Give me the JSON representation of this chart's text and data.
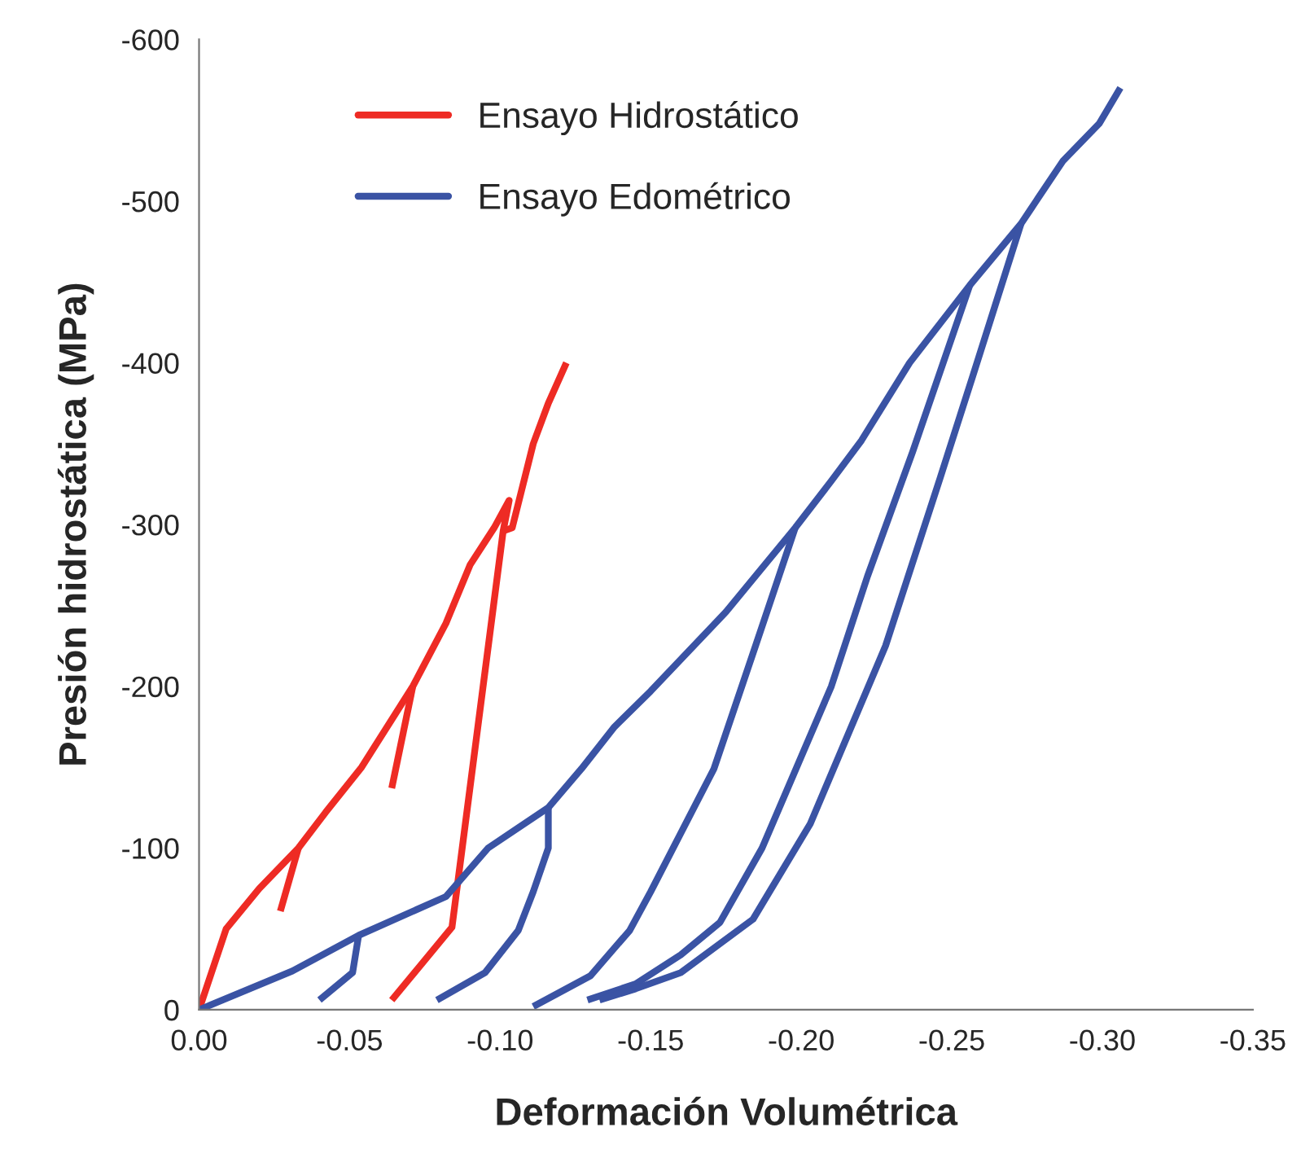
{
  "chart_data": {
    "type": "line",
    "xlabel": "Deformación Volumétrica",
    "ylabel": "Presión hidrostática (MPa)",
    "xlim": [
      0,
      -0.35
    ],
    "ylim": [
      0,
      -600
    ],
    "xticks": [
      {
        "value": 0,
        "label": "0.00"
      },
      {
        "value": -0.05,
        "label": "-0.05"
      },
      {
        "value": -0.1,
        "label": "-0.10"
      },
      {
        "value": -0.15,
        "label": "-0.15"
      },
      {
        "value": -0.2,
        "label": "-0.20"
      },
      {
        "value": -0.25,
        "label": "-0.25"
      },
      {
        "value": -0.3,
        "label": "-0.30"
      },
      {
        "value": -0.35,
        "label": "-0.35"
      }
    ],
    "yticks": [
      0,
      -100,
      -200,
      -300,
      -400,
      -500,
      -600
    ],
    "grid": false,
    "legend": "top left",
    "marker": "none",
    "line_style": "solid",
    "series": [
      {
        "name": "Ensayo Hidrostático",
        "color": "#ee2b24",
        "x": [
          0,
          -0.009,
          -0.02,
          -0.033,
          -0.042,
          -0.054,
          -0.071,
          -0.082,
          -0.09,
          -0.098,
          -0.103,
          -0.101,
          -0.084,
          -0.064
        ],
        "values": [
          0,
          -50,
          -75,
          -100,
          -122,
          -150,
          -200,
          -239,
          -275,
          -298,
          -315,
          -296,
          -51,
          -6
        ]
      },
      {
        "color": "#ee2b24",
        "x": [
          -0.101,
          -0.104,
          -0.111,
          -0.116,
          -0.122
        ],
        "values": [
          -296,
          -298,
          -350,
          -375,
          -400
        ]
      },
      {
        "color": "#ee2b24",
        "x": [
          -0.033,
          -0.027
        ],
        "values": [
          -100,
          -61
        ]
      },
      {
        "color": "#ee2b24",
        "x": [
          -0.071,
          -0.064
        ],
        "values": [
          -200,
          -137
        ]
      },
      {
        "name": "Ensayo Edométrico",
        "color": "#3a53a4",
        "x": [
          0,
          -0.031,
          -0.053,
          -0.082,
          -0.096,
          -0.116,
          -0.127,
          -0.138,
          -0.15,
          -0.175,
          -0.198,
          -0.21,
          -0.22,
          -0.236,
          -0.256,
          -0.273,
          -0.278,
          -0.287,
          -0.299,
          -0.306
        ],
        "values": [
          0,
          -24,
          -46,
          -70,
          -100,
          -125,
          -149,
          -175,
          -197,
          -246,
          -298,
          -327,
          -352,
          -400,
          -448,
          -486,
          -500,
          -525,
          -548,
          -570
        ]
      },
      {
        "color": "#3a53a4",
        "x": [
          -0.053,
          -0.051,
          -0.04
        ],
        "values": [
          -46,
          -23,
          -6
        ]
      },
      {
        "color": "#3a53a4",
        "x": [
          -0.116,
          -0.116,
          -0.111,
          -0.106,
          -0.095,
          -0.079
        ],
        "values": [
          -125,
          -100,
          -73,
          -49,
          -23,
          -6
        ]
      },
      {
        "color": "#3a53a4",
        "x": [
          -0.198,
          -0.185,
          -0.171,
          -0.15,
          -0.143,
          -0.13,
          -0.111
        ],
        "values": [
          -298,
          -226,
          -149,
          -73,
          -49,
          -21,
          -2
        ]
      },
      {
        "color": "#3a53a4",
        "x": [
          -0.256,
          -0.237,
          -0.222,
          -0.21,
          -0.187,
          -0.173,
          -0.16,
          -0.145,
          -0.129
        ],
        "values": [
          -448,
          -345,
          -268,
          -200,
          -100,
          -54,
          -34,
          -16,
          -6
        ]
      },
      {
        "color": "#3a53a4",
        "x": [
          -0.273,
          -0.257,
          -0.246,
          -0.228,
          -0.203,
          -0.184,
          -0.16,
          -0.145,
          -0.133
        ],
        "values": [
          -486,
          -392,
          -328,
          -225,
          -115,
          -56,
          -23,
          -13,
          -6
        ]
      }
    ]
  }
}
